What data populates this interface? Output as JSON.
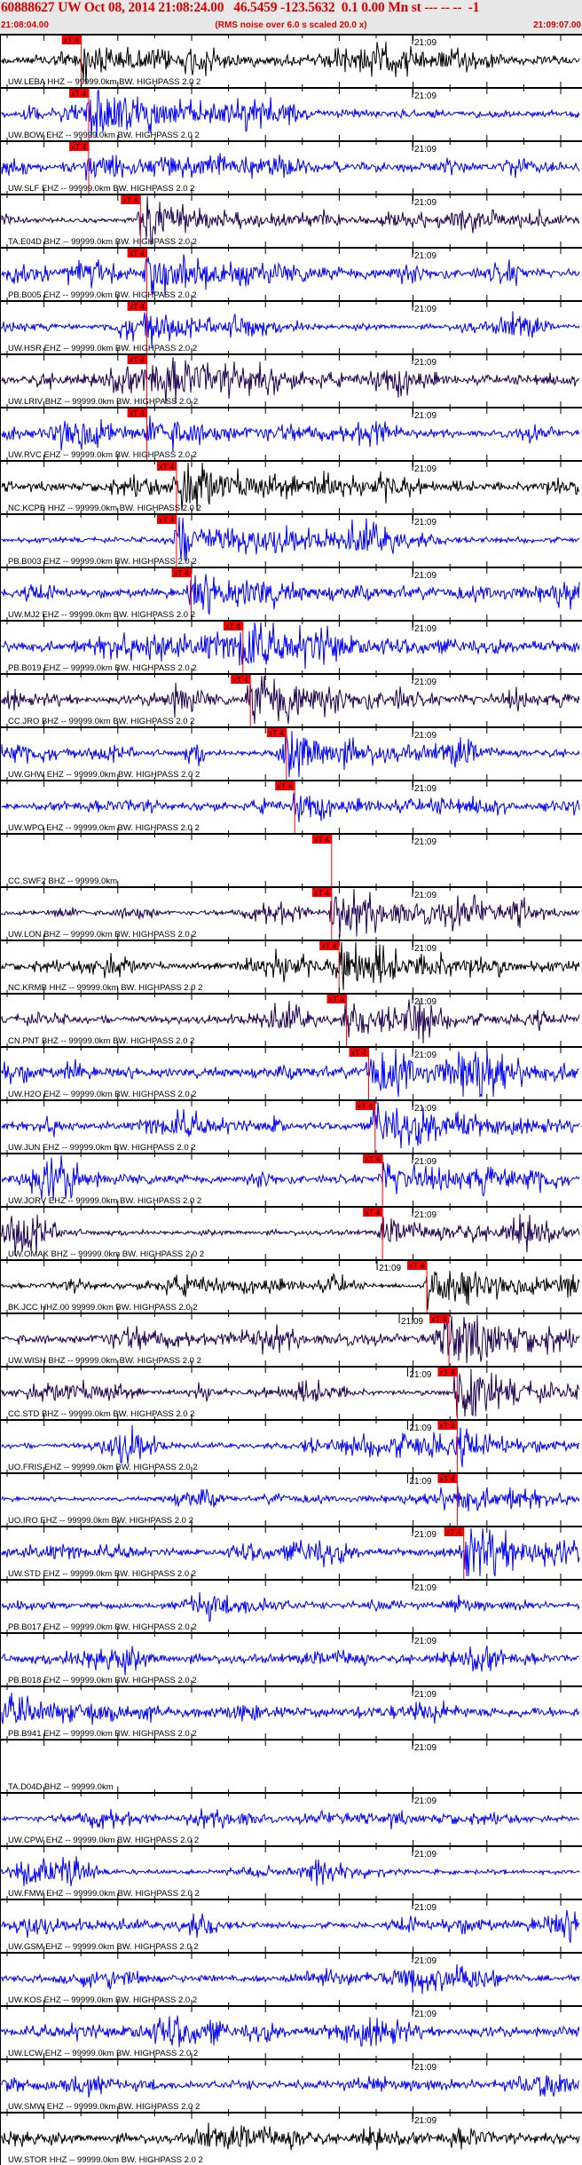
{
  "header": {
    "title": "60888627 UW Oct 08, 2014 21:08:24.00   46.5459 -123.5632  0.1 0.00 Mn st --- -- --  -1",
    "start_time": "21:08:04.00",
    "note": "(RMS noise over 6.0 s scaled 20.0 x)",
    "end_time": "21:09:07.00"
  },
  "chart_data": {
    "type": "line",
    "title": "60888627 UW Oct 08, 2014 21:08:24.00   46.5459 -123.5632  0.1 0.00 Mn st --- -- --  -1",
    "x_range": [
      "21:08:04.00",
      "21:09:07.00"
    ],
    "tick_label": "21:09",
    "pick_label": "xT 4",
    "colors": {
      "black": "#000000",
      "blue": "#0000ff",
      "purple": "#200050",
      "pick": "#ff0000",
      "header_bg": "#e8e8e8",
      "header_text": "#e00000"
    },
    "traces": [
      {
        "label": "UW.LEBA HHZ -- 99999.0km BW. HIGHPASS  2.0  2",
        "color": "black",
        "pick": "21:08:12.8"
      },
      {
        "label": "UW.BOW EHZ -- 99999.0km BW. HIGHPASS  2.0  2",
        "color": "blue",
        "pick": "21:08:13.6"
      },
      {
        "label": "UW.SLF EHZ -- 99999.0km BW. HIGHPASS  2.0  2",
        "color": "blue",
        "pick": "21:08:13.6"
      },
      {
        "label": "TA.E04D BHZ -- 99999.0km BW. HIGHPASS  2.0  2",
        "color": "purple",
        "pick": "21:08:19.2"
      },
      {
        "label": "PB.B005 EHZ -- 99999.0km BW. HIGHPASS  2.0  2",
        "color": "blue",
        "pick": "21:08:19.9"
      },
      {
        "label": "UW.HSR EHZ -- 99999.0km BW. HIGHPASS  2.0  2",
        "color": "blue",
        "pick": "21:08:19.9"
      },
      {
        "label": "UW.LRIV BHZ -- 99999.0km BW. HIGHPASS  2.0  2",
        "color": "purple",
        "pick": "21:08:19.9"
      },
      {
        "label": "UW.RVC EHZ -- 99999.0km BW. HIGHPASS  2.0  2",
        "color": "blue",
        "pick": "21:08:19.9"
      },
      {
        "label": "NC.KCPB HHZ -- 99999.0km BW. HIGHPASS  2.0  2",
        "color": "black",
        "pick": "21:08:23.1"
      },
      {
        "label": "PB.B003 EHZ -- 99999.0km BW. HIGHPASS  2.0  2",
        "color": "blue",
        "pick": "21:08:23.1"
      },
      {
        "label": "UW.MJ2 EHZ -- 99999.0km BW. HIGHPASS  2.0  2",
        "color": "blue",
        "pick": "21:08:24.7"
      },
      {
        "label": "PB.B019 EHZ -- 99999.0km BW. HIGHPASS  2.0  2",
        "color": "blue",
        "pick": "21:08:30.3"
      },
      {
        "label": "CC.JRO BHZ -- 99999.0km BW. HIGHPASS  2.0  2",
        "color": "purple",
        "pick": "21:08:31.1"
      },
      {
        "label": "UW.GHW EHZ -- 99999.0km BW. HIGHPASS  2.0  2",
        "color": "blue",
        "pick": "21:08:35.0"
      },
      {
        "label": "UW.WPO EHZ -- 99999.0km BW. HIGHPASS  2.0  2",
        "color": "blue",
        "pick": "21:08:35.9"
      },
      {
        "label": "CC.SWF2 BHZ -- 99999.0km",
        "color": "none",
        "pick": "21:08:39.9"
      },
      {
        "label": "UW.LON BHZ -- 99999.0km BW. HIGHPASS  2.0  2",
        "color": "purple",
        "pick": "21:08:39.9"
      },
      {
        "label": "NC.KRMB HHZ -- 99999.0km BW. HIGHPASS  2.0  2",
        "color": "black",
        "pick": "21:08:40.7"
      },
      {
        "label": "CN.PNT BHZ -- 99999.0km BW. HIGHPASS  2.0  2",
        "color": "purple",
        "pick": "21:08:41.5"
      },
      {
        "label": "UW.H2O EHZ -- 99999.0km BW. HIGHPASS  2.0  2",
        "color": "blue",
        "pick": "21:08:43.9"
      },
      {
        "label": "UW.JUN EHZ -- 99999.0km BW. HIGHPASS  2.0  2",
        "color": "blue",
        "pick": "21:08:44.6"
      },
      {
        "label": "UW.JORV EHZ -- 99999.0km BW. HIGHPASS  2.0  2",
        "color": "blue",
        "pick": "21:08:45.4"
      },
      {
        "label": "UW.OMAK BHZ -- 99999.0km BW. HIGHPASS  2.0  2",
        "color": "purple",
        "pick": "21:08:45.4"
      },
      {
        "label": "BK.JCC HHZ.00 99999.0km BW. HIGHPASS  2.0  2",
        "color": "black",
        "pick": "21:08:50.2"
      },
      {
        "label": "UW.WISH BHZ -- 99999.0km BW. HIGHPASS  2.0  2",
        "color": "purple",
        "pick": "21:08:52.6"
      },
      {
        "label": "CC.STD BHZ -- 99999.0km BW. HIGHPASS  2.0  2",
        "color": "purple",
        "pick": "21:08:53.5"
      },
      {
        "label": "UO.FRIS EHZ -- 99999.0km BW. HIGHPASS  2.0  2",
        "color": "blue",
        "pick": "21:08:53.5"
      },
      {
        "label": "UO.IRO EHZ -- 99999.0km BW. HIGHPASS  2.0  2",
        "color": "blue",
        "pick": "21:08:53.5"
      },
      {
        "label": "UW.STD EHZ -- 99999.0km BW. HIGHPASS  2.0  2",
        "color": "blue",
        "pick": "21:08:54.2"
      },
      {
        "label": "PB.B017 EHZ -- 99999.0km BW. HIGHPASS  2.0  2",
        "color": "blue",
        "pick": null
      },
      {
        "label": "PB.B018 EHZ -- 99999.0km BW. HIGHPASS  2.0  2",
        "color": "blue",
        "pick": null
      },
      {
        "label": "PB.B941 EHZ -- 99999.0km BW. HIGHPASS  2.0  2",
        "color": "blue",
        "pick": null
      },
      {
        "label": "TA.D04D BHZ -- 99999.0km",
        "color": "none",
        "pick": null
      },
      {
        "label": "UW.CPW EHZ -- 99999.0km BW. HIGHPASS  2.0  2",
        "color": "blue",
        "pick": null
      },
      {
        "label": "UW.FMW EHZ -- 99999.0km BW. HIGHPASS  2.0  2",
        "color": "blue",
        "pick": null
      },
      {
        "label": "UW.GSM EHZ -- 99999.0km BW. HIGHPASS  2.0  2",
        "color": "blue",
        "pick": null
      },
      {
        "label": "UW.KOS EHZ -- 99999.0km BW. HIGHPASS  2.0  2",
        "color": "blue",
        "pick": null
      },
      {
        "label": "UW.LCW EHZ -- 99999.0km BW. HIGHPASS  2.0  2",
        "color": "blue",
        "pick": null
      },
      {
        "label": "UW.SMW EHZ -- 99999.0km BW. HIGHPASS  2.0  2",
        "color": "blue",
        "pick": null
      },
      {
        "label": "UW.STOR HHZ -- 99999.0km BW. HIGHPASS  2.0  2",
        "color": "black",
        "pick": null
      }
    ]
  }
}
